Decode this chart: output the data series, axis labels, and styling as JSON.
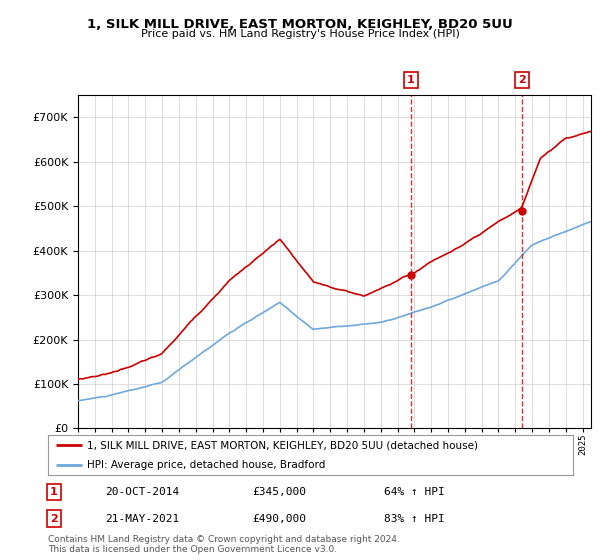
{
  "title": "1, SILK MILL DRIVE, EAST MORTON, KEIGHLEY, BD20 5UU",
  "subtitle": "Price paid vs. HM Land Registry's House Price Index (HPI)",
  "ylim": [
    0,
    750000
  ],
  "yticks": [
    0,
    100000,
    200000,
    300000,
    400000,
    500000,
    600000,
    700000
  ],
  "ytick_labels": [
    "£0",
    "£100K",
    "£200K",
    "£300K",
    "£400K",
    "£500K",
    "£600K",
    "£700K"
  ],
  "hpi_color": "#6fa8dc",
  "price_color": "#cc0000",
  "marker1_date": 2014.8,
  "marker1_price": 345000,
  "marker1_label": "20-OCT-2014",
  "marker1_amount": "£345,000",
  "marker1_hpi": "64% ↑ HPI",
  "marker2_date": 2021.38,
  "marker2_price": 490000,
  "marker2_label": "21-MAY-2021",
  "marker2_amount": "£490,000",
  "marker2_hpi": "83% ↑ HPI",
  "legend_price_label": "1, SILK MILL DRIVE, EAST MORTON, KEIGHLEY, BD20 5UU (detached house)",
  "legend_hpi_label": "HPI: Average price, detached house, Bradford",
  "footnote1": "Contains HM Land Registry data © Crown copyright and database right 2024.",
  "footnote2": "This data is licensed under the Open Government Licence v3.0.",
  "plot_bg_color": "#ffffff",
  "grid_color": "#cccccc"
}
